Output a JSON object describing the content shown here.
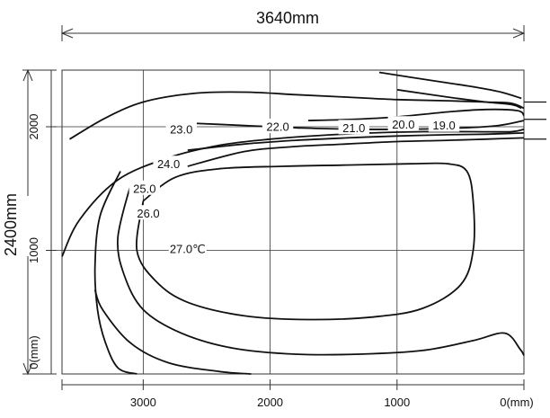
{
  "chart_data": {
    "type": "contour",
    "title": "",
    "dimension_top": "3640mm",
    "dimension_left": "2400mm",
    "xlim": [
      3640,
      0
    ],
    "ylim": [
      0,
      2400
    ],
    "x_ticks": [
      {
        "value": 3000,
        "label": "3000"
      },
      {
        "value": 2000,
        "label": "2000"
      },
      {
        "value": 1000,
        "label": "1000"
      },
      {
        "value": 0,
        "label": "0(mm)"
      }
    ],
    "y_ticks": [
      {
        "value": 0,
        "label": "0(mm)"
      },
      {
        "value": 1000,
        "label": "1000"
      },
      {
        "value": 2000,
        "label": "2000"
      }
    ],
    "grid": true,
    "contours": [
      {
        "value": 19.0,
        "label": "19.0",
        "label_at": [
          630,
          2010
        ],
        "points": [
          [
            1140,
            2440
          ],
          [
            700,
            2370
          ],
          [
            380,
            2320
          ],
          [
            180,
            2280
          ],
          [
            20,
            2230
          ]
        ]
      },
      {
        "value": 20.0,
        "label": "20.0",
        "label_at": [
          950,
          2020
        ],
        "points": [
          [
            1000,
            2300
          ],
          [
            600,
            2240
          ],
          [
            300,
            2200
          ],
          [
            100,
            2180
          ],
          [
            20,
            2150
          ]
        ]
      },
      {
        "value": 21.0,
        "label": "21.0",
        "label_at": [
          1340,
          1990
        ],
        "points": [
          [
            1700,
            2050
          ],
          [
            1350,
            2060
          ],
          [
            1000,
            2080
          ],
          [
            600,
            2120
          ],
          [
            300,
            2140
          ],
          [
            50,
            2130
          ],
          [
            0,
            2090
          ]
        ]
      },
      {
        "value": 22.0,
        "label": "22.0",
        "label_at": [
          1940,
          2000
        ],
        "points": [
          [
            2650,
            2030
          ],
          [
            2200,
            2010
          ],
          [
            1750,
            1990
          ],
          [
            1300,
            1980
          ],
          [
            900,
            1980
          ],
          [
            500,
            1990
          ],
          [
            200,
            2010
          ],
          [
            0,
            2050
          ]
        ]
      },
      {
        "value": 23.0,
        "label": "23.0",
        "label_at": [
          2700,
          1980
        ],
        "points": [
          [
            3580,
            1900
          ],
          [
            3300,
            2070
          ],
          [
            3000,
            2200
          ],
          [
            2600,
            2270
          ],
          [
            2200,
            2280
          ],
          [
            1800,
            2260
          ],
          [
            1400,
            2240
          ],
          [
            1000,
            2220
          ],
          [
            600,
            2210
          ],
          [
            300,
            2200
          ],
          [
            100,
            2190
          ],
          [
            0,
            2150
          ]
        ]
      },
      {
        "value": 24.0,
        "label": "24.0",
        "label_at": [
          2800,
          1700
        ],
        "points": [
          [
            3640,
            950
          ],
          [
            3500,
            1250
          ],
          [
            3200,
            1570
          ],
          [
            2800,
            1750
          ],
          [
            2400,
            1850
          ],
          [
            2000,
            1900
          ],
          [
            1600,
            1930
          ],
          [
            1200,
            1950
          ],
          [
            800,
            1960
          ],
          [
            400,
            1960
          ],
          [
            100,
            1960
          ],
          [
            0,
            1980
          ]
        ]
      },
      {
        "value": 25.0,
        "label": "25.0",
        "label_at": [
          2990,
          1500
        ],
        "points": [
          [
            2650,
            1810
          ],
          [
            2200,
            1860
          ],
          [
            1800,
            1890
          ],
          [
            1400,
            1910
          ],
          [
            1000,
            1925
          ],
          [
            600,
            1935
          ],
          [
            300,
            1940
          ],
          [
            0,
            1950
          ]
        ]
      },
      {
        "value": 26.0,
        "label": "26.0",
        "label_at": [
          2960,
          1300
        ],
        "points": [
          [
            2650,
            1680
          ],
          [
            2200,
            1800
          ],
          [
            1800,
            1840
          ],
          [
            1400,
            1860
          ],
          [
            1000,
            1880
          ],
          [
            600,
            1890
          ],
          [
            300,
            1900
          ],
          [
            0,
            1910
          ]
        ]
      },
      {
        "value": 27.0,
        "label": "27.0℃",
        "label_at": [
          2650,
          1010
        ],
        "points": [
          [
            3000,
            1400
          ],
          [
            3050,
            1000
          ],
          [
            2900,
            750
          ],
          [
            2650,
            580
          ],
          [
            2200,
            470
          ],
          [
            1700,
            440
          ],
          [
            1200,
            460
          ],
          [
            800,
            530
          ],
          [
            500,
            720
          ],
          [
            400,
            1000
          ],
          [
            400,
            1400
          ],
          [
            450,
            1640
          ],
          [
            600,
            1700
          ],
          [
            900,
            1700
          ],
          [
            1400,
            1690
          ],
          [
            1900,
            1680
          ],
          [
            2400,
            1660
          ],
          [
            2750,
            1590
          ],
          [
            3000,
            1400
          ]
        ]
      },
      {
        "value": 26.0,
        "label": "",
        "points": [
          [
            3100,
            1530
          ],
          [
            3200,
            1100
          ],
          [
            3150,
            800
          ],
          [
            3000,
            520
          ],
          [
            2700,
            330
          ],
          [
            2300,
            210
          ],
          [
            1800,
            160
          ],
          [
            1300,
            160
          ],
          [
            800,
            190
          ],
          [
            400,
            270
          ],
          [
            150,
            330
          ],
          [
            30,
            200
          ],
          [
            0,
            150
          ]
        ]
      },
      {
        "value": 25.0,
        "label": "",
        "points": [
          [
            3180,
            1640
          ],
          [
            3340,
            1280
          ],
          [
            3380,
            870
          ],
          [
            3360,
            520
          ],
          [
            3300,
            260
          ],
          [
            3200,
            50
          ],
          [
            3050,
            0
          ]
        ]
      },
      {
        "value": 24.0,
        "label": "",
        "points": [
          [
            3380,
            680
          ],
          [
            3320,
            520
          ],
          [
            3100,
            250
          ],
          [
            2800,
            90
          ],
          [
            2400,
            20
          ],
          [
            2150,
            -20
          ]
        ]
      }
    ],
    "right_edge_ticks": [
      2200,
      2060,
      1900
    ]
  }
}
